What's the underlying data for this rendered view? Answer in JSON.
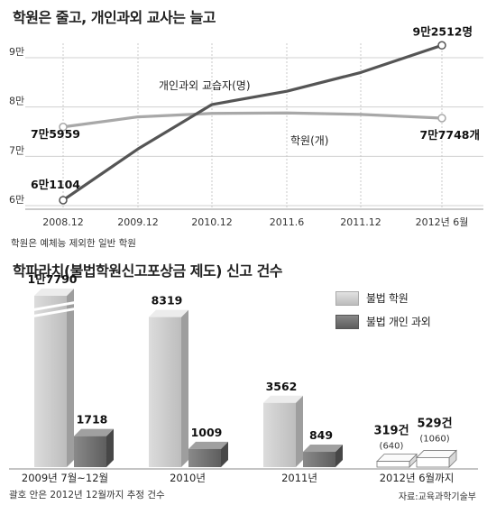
{
  "top": {
    "title": "학원은 줄고, 개인과외 교사는 늘고",
    "note": "학원은 예체능 제외한 일반 학원"
  },
  "bottom": {
    "title": "학파라치(불법학원신고포상금 제도) 신고 건수",
    "note": "괄호 안은 2012년 12월까지 추정 건수",
    "source": "자료:교육과학기술부"
  },
  "colors": {
    "tutor_line": "#555555",
    "academy_line": "#a8a8a8",
    "bar_academy": "#c8c8c8",
    "bar_tutor": "#6e6e6e"
  },
  "chart_data": [
    {
      "type": "line",
      "title": "학원은 줄고, 개인과외 교사는 늘고",
      "x": [
        "2008.12",
        "2009.12",
        "2010.12",
        "2011.6",
        "2011.12",
        "2012년 6월"
      ],
      "yticks": [
        "6만",
        "7만",
        "8만",
        "9만"
      ],
      "ylim": [
        60000,
        95000
      ],
      "grid": true,
      "series": [
        {
          "name": "개인과외 교습자(명)",
          "values": [
            61104,
            71500,
            80500,
            83200,
            87000,
            92512
          ],
          "start_label": "6만1104",
          "end_label": "9만2512명"
        },
        {
          "name": "학원(개)",
          "values": [
            75959,
            78000,
            78700,
            78800,
            78500,
            77748
          ],
          "start_label": "7만5959",
          "end_label": "7만7748개"
        }
      ]
    },
    {
      "type": "bar",
      "title": "학파라치(불법학원신고포상금 제도) 신고 건수",
      "categories": [
        "2009년 7월~12월",
        "2010년",
        "2011년",
        "2012년 6월까지"
      ],
      "series": [
        {
          "name": "불법 학원",
          "values": [
            17790,
            8319,
            3562,
            319
          ],
          "labels": [
            "1만7790",
            "8319",
            "3562",
            "319건"
          ],
          "estimate": [
            null,
            null,
            null,
            "(640)"
          ]
        },
        {
          "name": "불법 개인 과외",
          "values": [
            1718,
            1009,
            849,
            529
          ],
          "labels": [
            "1718",
            "1009",
            "849",
            "529건"
          ],
          "estimate": [
            null,
            null,
            null,
            "(1060)"
          ]
        }
      ],
      "legend_position": "top-right",
      "note": "괄호 안은 2012년 12월까지 추정 건수"
    }
  ]
}
